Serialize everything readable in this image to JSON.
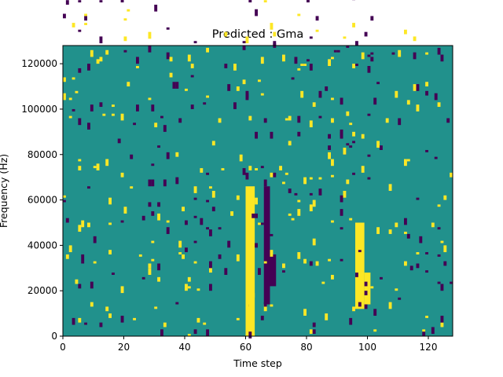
{
  "chart_data": {
    "type": "heatmap",
    "title": "Predicted : Gma",
    "xlabel": "Time step",
    "ylabel": "Frequency (Hz)",
    "xlim": [
      0,
      128
    ],
    "ylim": [
      0,
      128000
    ],
    "xticks": [
      0,
      20,
      40,
      60,
      80,
      100,
      120
    ],
    "xtick_labels": [
      "0",
      "20",
      "40",
      "60",
      "80",
      "100",
      "120"
    ],
    "yticks": [
      0,
      20000,
      40000,
      60000,
      80000,
      100000,
      120000
    ],
    "ytick_labels": [
      "0",
      "20000",
      "40000",
      "60000",
      "80000",
      "100000",
      "120000"
    ],
    "grid": false,
    "colormap": {
      "low": "#440154",
      "mid": "#21918c",
      "high": "#fde725"
    },
    "background_value": "mid",
    "grid_shape": {
      "time_steps": 128,
      "frequency_bins": 128
    },
    "regions": [
      {
        "x": [
          60,
          63
        ],
        "y": [
          0,
          66000
        ],
        "level": "high",
        "note": "bright vertical band"
      },
      {
        "x": [
          66,
          68
        ],
        "y": [
          14000,
          66000
        ],
        "level": "low",
        "note": "dark vertical band"
      },
      {
        "x": [
          68,
          70
        ],
        "y": [
          22000,
          36000
        ],
        "level": "low"
      },
      {
        "x": [
          96,
          99
        ],
        "y": [
          12000,
          50000
        ],
        "level": "high"
      },
      {
        "x": [
          99,
          101
        ],
        "y": [
          14000,
          28000
        ],
        "level": "high"
      }
    ]
  }
}
